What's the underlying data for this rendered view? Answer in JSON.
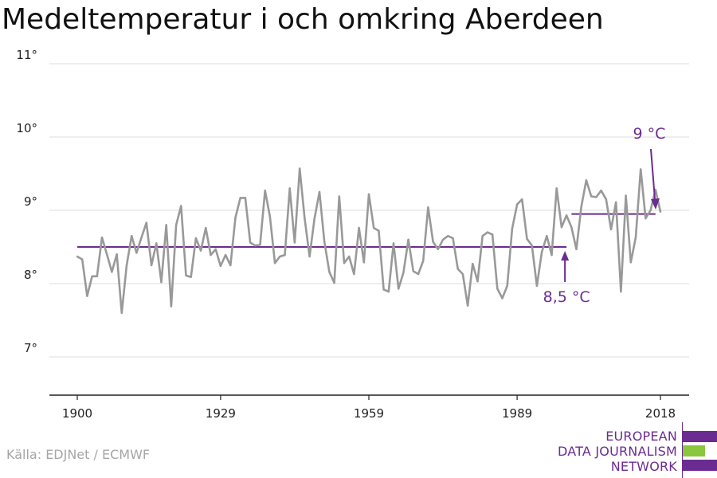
{
  "chart_data": {
    "type": "line",
    "title": "Medeltemperatur i och omkring Aberdeen",
    "xlabel": "",
    "ylabel": "",
    "xlim": [
      1900,
      2018
    ],
    "ylim": [
      6.5,
      11.2
    ],
    "xticks": [
      1900,
      1929,
      1959,
      1989,
      2018
    ],
    "xtick_labels": [
      "1900",
      "1929",
      "1959",
      "1989",
      "2018"
    ],
    "yticks": [
      7,
      8,
      9,
      10,
      11
    ],
    "ytick_labels": [
      "7°",
      "8°",
      "9°",
      "10°",
      "11°"
    ],
    "grid": true,
    "line_color": "#999999",
    "ref_color": "#6b2c91",
    "x": [
      1900,
      1901,
      1902,
      1903,
      1904,
      1905,
      1906,
      1907,
      1908,
      1909,
      1910,
      1911,
      1912,
      1913,
      1914,
      1915,
      1916,
      1917,
      1918,
      1919,
      1920,
      1921,
      1922,
      1923,
      1924,
      1925,
      1926,
      1927,
      1928,
      1929,
      1930,
      1931,
      1932,
      1933,
      1934,
      1935,
      1936,
      1937,
      1938,
      1939,
      1940,
      1941,
      1942,
      1943,
      1944,
      1945,
      1946,
      1947,
      1948,
      1949,
      1950,
      1951,
      1952,
      1953,
      1954,
      1955,
      1956,
      1957,
      1958,
      1959,
      1960,
      1961,
      1962,
      1963,
      1964,
      1965,
      1966,
      1967,
      1968,
      1969,
      1970,
      1971,
      1972,
      1973,
      1974,
      1975,
      1976,
      1977,
      1978,
      1979,
      1980,
      1981,
      1982,
      1983,
      1984,
      1985,
      1986,
      1987,
      1988,
      1989,
      1990,
      1991,
      1992,
      1993,
      1994,
      1995,
      1996,
      1997,
      1998,
      1999,
      2000,
      2001,
      2002,
      2003,
      2004,
      2005,
      2006,
      2007,
      2008,
      2009,
      2010,
      2011,
      2012,
      2013,
      2014,
      2015,
      2016,
      2017,
      2018
    ],
    "series": [
      {
        "values": [
          8.37,
          8.33,
          7.83,
          8.1,
          8.1,
          8.63,
          8.4,
          8.16,
          8.4,
          7.6,
          8.25,
          8.65,
          8.42,
          8.63,
          8.83,
          8.25,
          8.55,
          8.02,
          8.8,
          7.69,
          8.8,
          9.06,
          8.11,
          8.09,
          8.62,
          8.45,
          8.76,
          8.39,
          8.47,
          8.24,
          8.39,
          8.25,
          8.9,
          9.17,
          9.17,
          8.56,
          8.52,
          8.53,
          9.27,
          8.91,
          8.28,
          8.37,
          8.39,
          9.3,
          8.56,
          9.57,
          8.89,
          8.37,
          8.89,
          9.25,
          8.57,
          8.16,
          8.01,
          9.19,
          8.28,
          8.37,
          8.13,
          8.76,
          8.29,
          9.22,
          8.76,
          8.72,
          7.92,
          7.89,
          8.55,
          7.93,
          8.15,
          8.6,
          8.17,
          8.13,
          8.31,
          9.04,
          8.57,
          8.47,
          8.6,
          8.65,
          8.62,
          8.2,
          8.13,
          7.7,
          8.27,
          8.03,
          8.65,
          8.7,
          8.67,
          7.93,
          7.8,
          7.97,
          8.75,
          9.08,
          9.15,
          8.61,
          8.52,
          7.97,
          8.43,
          8.65,
          8.39,
          9.3,
          8.77,
          8.93,
          8.77,
          8.47,
          9.05,
          9.41,
          9.19,
          9.18,
          9.27,
          9.15,
          8.74,
          9.11,
          7.89,
          9.2,
          8.29,
          8.63,
          9.56,
          8.89,
          9.0,
          9.28,
          8.98
        ]
      }
    ],
    "reference_lines": [
      {
        "label": "8,5 °C",
        "value": 8.5,
        "x_start": 1900,
        "x_end": 1999
      },
      {
        "label": "9 °C",
        "value": 8.95,
        "x_start": 2000,
        "x_end": 2017
      }
    ]
  },
  "source_text": "Källa: EDJNet / ECMWF",
  "logo": {
    "lines": [
      "EUROPEAN",
      "DATA JOURNALISM",
      "NETWORK"
    ],
    "bar_colors": [
      "#6b2c91",
      "#8cc63f",
      "#6b2c91"
    ]
  }
}
